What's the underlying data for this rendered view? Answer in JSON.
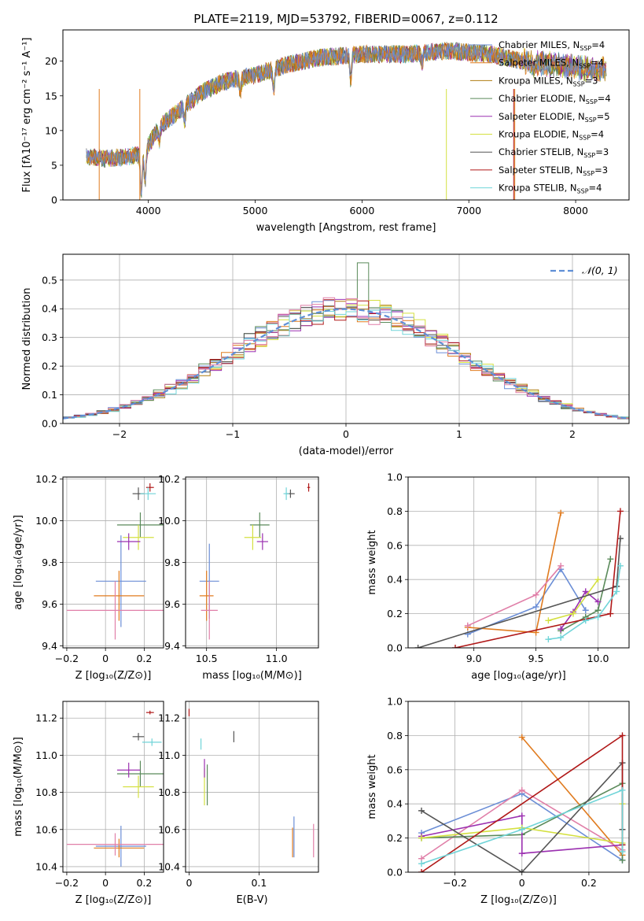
{
  "figure_title": "PLATE=2119, MJD=53792, FIBERID=0067, z=0.112",
  "colors": {
    "chab_miles": "#6b8ed6",
    "salp_miles": "#e07b1f",
    "krou_miles": "#b07d10",
    "chab_elodie": "#5a8a5a",
    "salp_elodie": "#9b30b0",
    "krou_elodie": "#d4e040",
    "chab_stelib": "#555555",
    "salp_stelib": "#b01818",
    "krou_stelib": "#70d4d8",
    "pink": "#e07fa8",
    "normal": "#5f8fd6"
  },
  "chart_data": [
    {
      "id": "spectrum",
      "type": "line",
      "xlabel": "wavelength [Angstrom, rest frame]",
      "ylabel": "Flux [fλ10⁻¹⁷ erg cm⁻² s⁻¹ A⁻¹]",
      "xlim": [
        3200,
        8500
      ],
      "ylim": [
        0,
        24.5
      ],
      "xticks": [
        4000,
        5000,
        6000,
        7000,
        8000
      ],
      "yticks": [
        0,
        5,
        10,
        15,
        20
      ],
      "grid": false,
      "legend_position": "top-right",
      "continuum": {
        "x": [
          3420,
          3600,
          3800,
          3950,
          4100,
          4300,
          4500,
          4700,
          5000,
          5300,
          5600,
          6000,
          6400,
          6800,
          7200,
          7500,
          7800,
          8000,
          8300
        ],
        "y": [
          6.3,
          6.0,
          6.2,
          6.6,
          10.5,
          13.0,
          15.5,
          17.0,
          18.0,
          19.5,
          20.5,
          21.0,
          21.0,
          21.5,
          21.0,
          20.0,
          19.5,
          19.0,
          18.8
        ]
      },
      "series": [
        {
          "name": "Chabrier MILES, N",
          "sub": "SSP",
          "tail": "=4"
        },
        {
          "name": "Salpeter MILES, N",
          "sub": "SSP",
          "tail": "=4"
        },
        {
          "name": "Kroupa MILES, N",
          "sub": "SSP",
          "tail": "=3"
        },
        {
          "name": "Chabrier ELODIE, N",
          "sub": "SSP",
          "tail": "=4"
        },
        {
          "name": "Salpeter ELODIE, N",
          "sub": "SSP",
          "tail": "=5"
        },
        {
          "name": "Kroupa ELODIE, N",
          "sub": "SSP",
          "tail": "=4"
        },
        {
          "name": "Chabrier STELIB, N",
          "sub": "SSP",
          "tail": "=3"
        },
        {
          "name": "Salpeter STELIB, N",
          "sub": "SSP",
          "tail": "=3"
        },
        {
          "name": "Kroupa STELIB, N",
          "sub": "SSP",
          "tail": "=4"
        }
      ]
    },
    {
      "id": "residuals",
      "type": "bar",
      "xlabel": "(data-model)/error",
      "ylabel": "Normed distribution",
      "xlim": [
        -2.5,
        2.5
      ],
      "ylim": [
        0,
        0.59
      ],
      "xticks": [
        -2,
        -1,
        0,
        1,
        2
      ],
      "yticks": [
        0.0,
        0.1,
        0.2,
        0.3,
        0.4,
        0.5
      ],
      "grid": true,
      "bin_width": 0.1,
      "legend_position": "top-right",
      "legend_label": "𝒩(0, 1)",
      "highlight": {
        "x": 0.15,
        "y": 0.56
      }
    },
    {
      "id": "age_vs_Z",
      "type": "scatter",
      "xlabel": "Z [log₁₀(Z/Z⊙)]",
      "ylabel": "age  [log₁₀(age/yr)]",
      "xlim": [
        -0.22,
        0.3
      ],
      "ylim": [
        9.39,
        10.21
      ],
      "xticks": [
        -0.2,
        0.0,
        0.2
      ],
      "yticks": [
        9.4,
        9.6,
        9.8,
        10.0,
        10.2
      ],
      "grid": true,
      "points": [
        {
          "c": "chab_miles",
          "x": 0.08,
          "y": 9.71,
          "ex": 0.13,
          "ey": 0.22
        },
        {
          "c": "salp_miles",
          "x": 0.07,
          "y": 9.64,
          "ex": 0.13,
          "ey": 0.12
        },
        {
          "c": "pink",
          "x": 0.05,
          "y": 9.57,
          "ex": 0.25,
          "ey": 0.14
        },
        {
          "c": "chab_elodie",
          "x": 0.18,
          "y": 9.98,
          "ex": 0.12,
          "ey": 0.06
        },
        {
          "c": "krou_elodie",
          "x": 0.17,
          "y": 9.92,
          "ex": 0.08,
          "ey": 0.06
        },
        {
          "c": "salp_elodie",
          "x": 0.12,
          "y": 9.9,
          "ex": 0.06,
          "ey": 0.04
        },
        {
          "c": "chab_stelib",
          "x": 0.17,
          "y": 10.13,
          "ex": 0.03,
          "ey": 0.03
        },
        {
          "c": "salp_stelib",
          "x": 0.23,
          "y": 10.16,
          "ex": 0.02,
          "ey": 0.02
        },
        {
          "c": "krou_stelib",
          "x": 0.22,
          "y": 10.13,
          "ex": 0.04,
          "ey": 0.03
        }
      ]
    },
    {
      "id": "age_vs_mass",
      "type": "scatter",
      "xlabel": "mass [log₁₀(M/M⊙)]",
      "ylabel": "",
      "xlim": [
        10.35,
        11.3
      ],
      "ylim": [
        9.39,
        10.21
      ],
      "xticks": [
        10.5,
        11.0
      ],
      "yticks": [
        9.4,
        9.6,
        9.8,
        10.0,
        10.2
      ],
      "grid": true,
      "points": [
        {
          "c": "chab_miles",
          "x": 10.52,
          "y": 9.71,
          "ex": 0.07,
          "ey": 0.18
        },
        {
          "c": "salp_miles",
          "x": 10.5,
          "y": 9.64,
          "ex": 0.05,
          "ey": 0.12
        },
        {
          "c": "pink",
          "x": 10.52,
          "y": 9.57,
          "ex": 0.06,
          "ey": 0.14
        },
        {
          "c": "chab_elodie",
          "x": 10.88,
          "y": 9.98,
          "ex": 0.07,
          "ey": 0.06
        },
        {
          "c": "krou_elodie",
          "x": 10.83,
          "y": 9.92,
          "ex": 0.06,
          "ey": 0.06
        },
        {
          "c": "salp_elodie",
          "x": 10.9,
          "y": 9.9,
          "ex": 0.04,
          "ey": 0.04
        },
        {
          "c": "chab_stelib",
          "x": 11.1,
          "y": 10.13,
          "ex": 0.03,
          "ey": 0.02
        },
        {
          "c": "salp_stelib",
          "x": 11.23,
          "y": 10.16,
          "ex": 0.01,
          "ey": 0.02
        },
        {
          "c": "krou_stelib",
          "x": 11.07,
          "y": 10.13,
          "ex": 0.02,
          "ey": 0.03
        }
      ]
    },
    {
      "id": "weight_vs_age",
      "type": "line",
      "xlabel": "age  [log₁₀(age/yr)]",
      "ylabel": "mass weight",
      "xlim": [
        8.47,
        10.25
      ],
      "ylim": [
        0,
        1.0
      ],
      "xticks": [
        9.0,
        9.5,
        10.0
      ],
      "yticks": [
        0.0,
        0.2,
        0.4,
        0.6,
        0.8,
        1.0
      ],
      "grid": true,
      "series": [
        {
          "c": "chab_miles",
          "x": [
            8.95,
            9.5,
            9.7,
            9.9
          ],
          "y": [
            0.08,
            0.24,
            0.46,
            0.22
          ]
        },
        {
          "c": "salp_miles",
          "x": [
            8.95,
            9.5,
            9.7
          ],
          "y": [
            0.12,
            0.09,
            0.79
          ]
        },
        {
          "c": "pink",
          "x": [
            8.95,
            9.5,
            9.7
          ],
          "y": [
            0.13,
            0.31,
            0.48
          ]
        },
        {
          "c": "chab_elodie",
          "x": [
            9.7,
            9.9,
            10.0,
            10.1
          ],
          "y": [
            0.1,
            0.18,
            0.22,
            0.52
          ]
        },
        {
          "c": "salp_elodie",
          "x": [
            9.7,
            9.8,
            9.9,
            10.0
          ],
          "y": [
            0.11,
            0.21,
            0.33,
            0.27
          ]
        },
        {
          "c": "krou_elodie",
          "x": [
            9.6,
            9.8,
            10.0
          ],
          "y": [
            0.16,
            0.2,
            0.4
          ]
        },
        {
          "c": "chab_stelib",
          "x": [
            8.55,
            10.15,
            10.18
          ],
          "y": [
            0.0,
            0.36,
            0.64
          ]
        },
        {
          "c": "salp_stelib",
          "x": [
            8.85,
            10.1,
            10.18
          ],
          "y": [
            0.0,
            0.2,
            0.8
          ]
        },
        {
          "c": "krou_stelib",
          "x": [
            9.6,
            9.7,
            9.9,
            10.0,
            10.15,
            10.18
          ],
          "y": [
            0.05,
            0.06,
            0.16,
            0.18,
            0.33,
            0.48
          ]
        }
      ]
    },
    {
      "id": "mass_vs_Z",
      "type": "scatter",
      "xlabel": "Z [log₁₀(Z/Z⊙)]",
      "ylabel": "mass [log₁₀(M/M⊙)]",
      "xlim": [
        -0.22,
        0.3
      ],
      "ylim": [
        10.37,
        11.29
      ],
      "xticks": [
        -0.2,
        0.0,
        0.2
      ],
      "yticks": [
        10.4,
        10.6,
        10.8,
        11.0,
        11.2
      ],
      "grid": true,
      "points": [
        {
          "c": "chab_miles",
          "x": 0.08,
          "y": 10.51,
          "ex": 0.13,
          "ey": 0.11
        },
        {
          "c": "salp_miles",
          "x": 0.07,
          "y": 10.5,
          "ex": 0.13,
          "ey": 0.05
        },
        {
          "c": "pink",
          "x": 0.05,
          "y": 10.52,
          "ex": 0.25,
          "ey": 0.06
        },
        {
          "c": "chab_elodie",
          "x": 0.18,
          "y": 10.9,
          "ex": 0.12,
          "ey": 0.07
        },
        {
          "c": "krou_elodie",
          "x": 0.17,
          "y": 10.83,
          "ex": 0.08,
          "ey": 0.06
        },
        {
          "c": "salp_elodie",
          "x": 0.12,
          "y": 10.92,
          "ex": 0.06,
          "ey": 0.04
        },
        {
          "c": "chab_stelib",
          "x": 0.17,
          "y": 11.1,
          "ex": 0.03,
          "ey": 0.02
        },
        {
          "c": "salp_stelib",
          "x": 0.23,
          "y": 11.23,
          "ex": 0.02,
          "ey": 0.01
        },
        {
          "c": "krou_stelib",
          "x": 0.24,
          "y": 11.07,
          "ex": 0.05,
          "ey": 0.02
        }
      ]
    },
    {
      "id": "mass_vs_ebv",
      "type": "scatter",
      "xlabel": "E(B-V)",
      "ylabel": "",
      "xlim": [
        -0.005,
        0.185
      ],
      "ylim": [
        10.37,
        11.29
      ],
      "xticks": [
        0.0,
        0.1
      ],
      "yticks": [
        10.4,
        10.6,
        10.8,
        11.0,
        11.2
      ],
      "grid": true,
      "points": [
        {
          "c": "chab_miles",
          "x": 0.15,
          "y": 10.56,
          "ex": 0,
          "ey": 0.11
        },
        {
          "c": "salp_miles",
          "x": 0.148,
          "y": 10.53,
          "ex": 0,
          "ey": 0.08
        },
        {
          "c": "pink",
          "x": 0.178,
          "y": 10.54,
          "ex": 0,
          "ey": 0.09
        },
        {
          "c": "chab_elodie",
          "x": 0.026,
          "y": 10.84,
          "ex": 0,
          "ey": 0.11
        },
        {
          "c": "krou_elodie",
          "x": 0.022,
          "y": 10.83,
          "ex": 0,
          "ey": 0.1
        },
        {
          "c": "salp_elodie",
          "x": 0.022,
          "y": 10.93,
          "ex": 0,
          "ey": 0.05
        },
        {
          "c": "chab_stelib",
          "x": 0.064,
          "y": 11.1,
          "ex": 0,
          "ey": 0.03
        },
        {
          "c": "salp_stelib",
          "x": 0.0,
          "y": 11.23,
          "ex": 0,
          "ey": 0.02
        },
        {
          "c": "krou_stelib",
          "x": 0.017,
          "y": 11.06,
          "ex": 0,
          "ey": 0.03
        }
      ]
    },
    {
      "id": "weight_vs_Z",
      "type": "line",
      "xlabel": "Z [log₁₀(Z/Z⊙)]",
      "ylabel": "mass weight",
      "xlim": [
        -0.34,
        0.32
      ],
      "ylim": [
        0,
        1.0
      ],
      "xticks": [
        -0.2,
        0.0,
        0.2
      ],
      "yticks": [
        0.0,
        0.2,
        0.4,
        0.6,
        0.8,
        1.0
      ],
      "grid": true,
      "series": [
        {
          "c": "chab_miles",
          "x": [
            -0.3,
            0.0,
            0.3
          ],
          "y": [
            0.23,
            0.46,
            0.07
          ]
        },
        {
          "c": "salp_miles",
          "x": [
            0.0,
            0.3
          ],
          "y": [
            0.79,
            0.1
          ]
        },
        {
          "c": "pink",
          "x": [
            -0.3,
            0.0,
            0.3
          ],
          "y": [
            0.08,
            0.48,
            0.13
          ]
        },
        {
          "c": "chab_elodie",
          "x": [
            -0.3,
            0.0,
            0.3,
            0.3
          ],
          "y": [
            0.2,
            0.22,
            0.52,
            0.07
          ]
        },
        {
          "c": "salp_elodie",
          "x": [
            -0.3,
            0.0,
            0.0,
            0.3
          ],
          "y": [
            0.21,
            0.33,
            0.11,
            0.16
          ]
        },
        {
          "c": "krou_elodie",
          "x": [
            -0.3,
            0.0,
            0.3,
            0.3
          ],
          "y": [
            0.2,
            0.26,
            0.17,
            0.4
          ]
        },
        {
          "c": "chab_stelib",
          "x": [
            -0.3,
            0.0,
            0.3,
            0.3
          ],
          "y": [
            0.36,
            0.0,
            0.64,
            0.25
          ]
        },
        {
          "c": "salp_stelib",
          "x": [
            -0.3,
            0.3,
            0.3
          ],
          "y": [
            0.0,
            0.8,
            0.16
          ]
        },
        {
          "c": "krou_stelib",
          "x": [
            -0.3,
            0.0,
            0.3,
            0.3
          ],
          "y": [
            0.05,
            0.25,
            0.48,
            0.12
          ]
        }
      ]
    }
  ]
}
